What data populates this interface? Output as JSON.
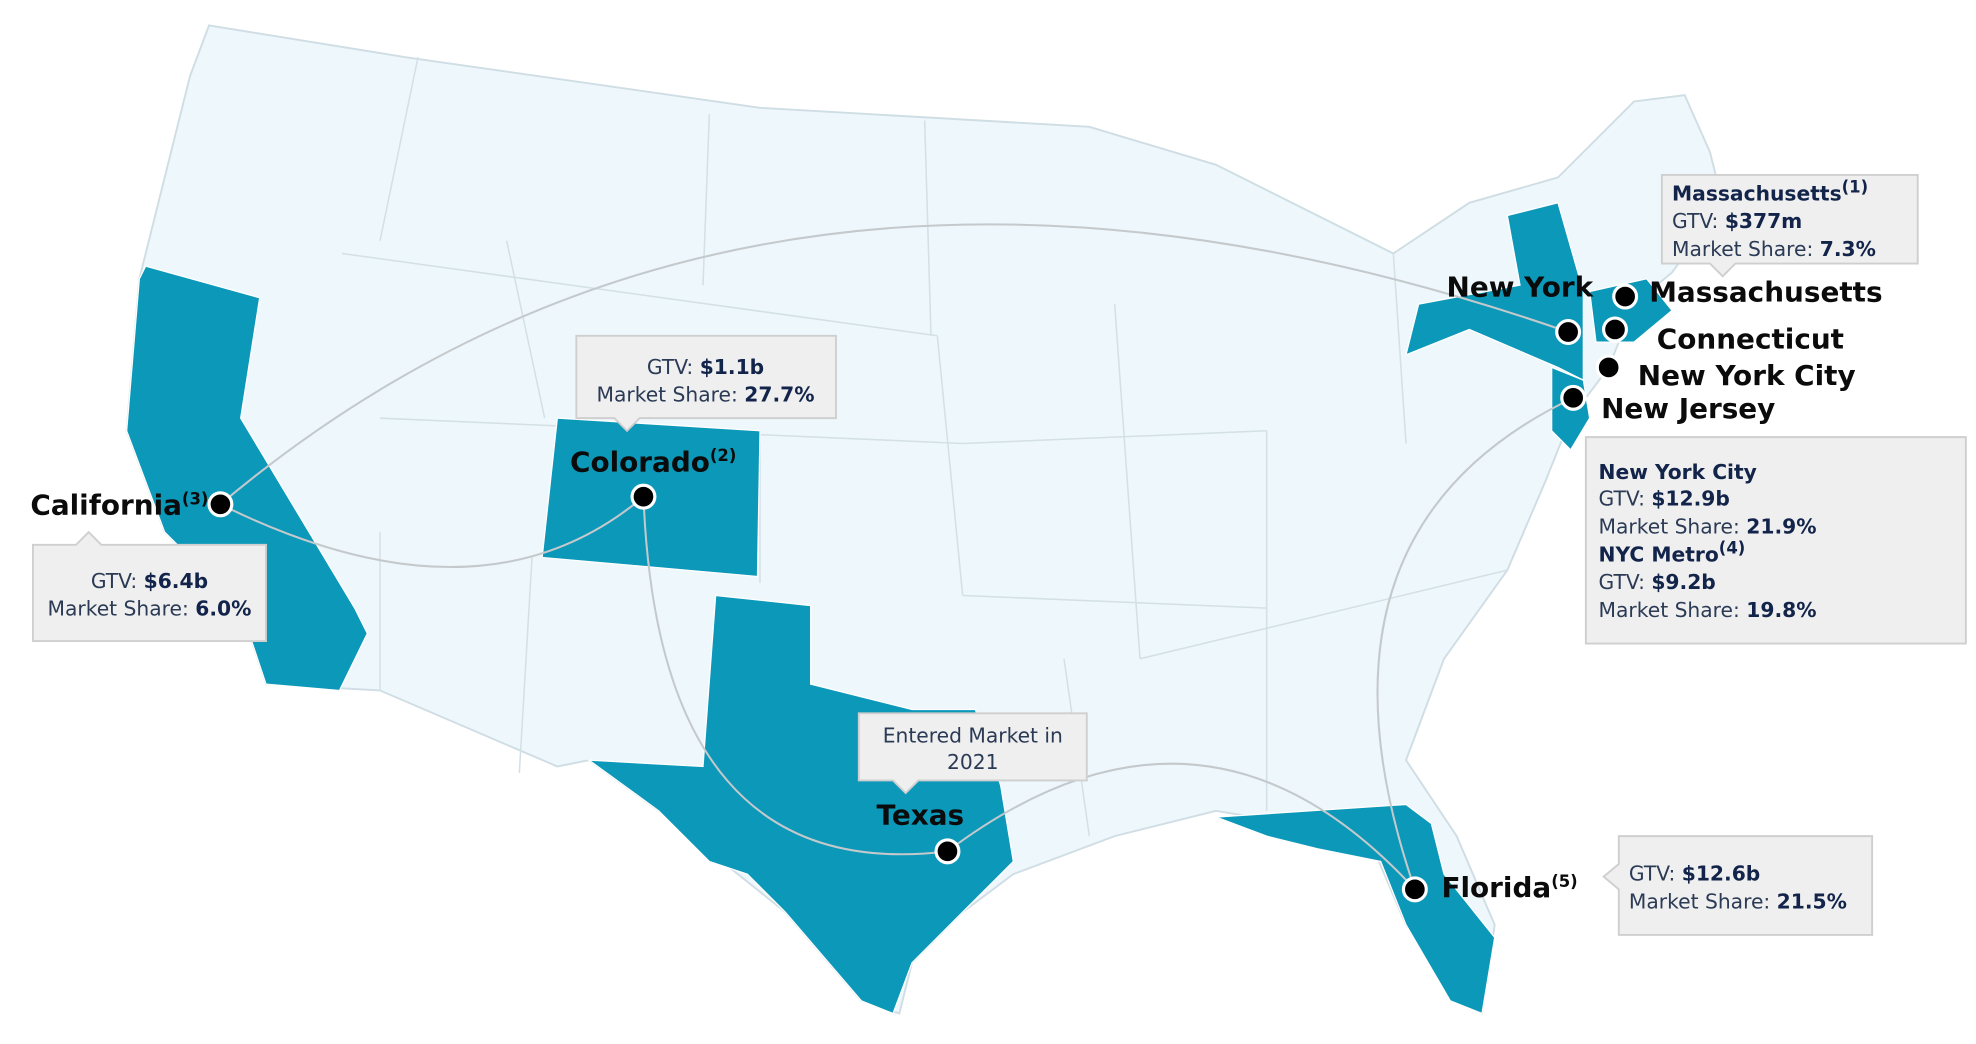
{
  "markets": [
    {
      "name": "California",
      "note": "(3)"
    },
    {
      "name": "Colorado",
      "note": "(2)"
    },
    {
      "name": "Texas"
    },
    {
      "name": "Florida",
      "note": "(5)"
    },
    {
      "name": "New York"
    },
    {
      "name": "Massachusetts"
    },
    {
      "name": "Connecticut"
    },
    {
      "name": "New York City"
    },
    {
      "name": "New Jersey"
    }
  ],
  "callouts": {
    "massachusetts": {
      "title": "Massachusetts",
      "note": "(1)",
      "gtv_label": "GTV:",
      "gtv": "$377m",
      "share_label": "Market Share:",
      "share": "7.3%"
    },
    "colorado": {
      "gtv_label": "GTV:",
      "gtv": "$1.1b",
      "share_label": "Market Share:",
      "share": "27.7%"
    },
    "california": {
      "gtv_label": "GTV:",
      "gtv": "$6.4b",
      "share_label": "Market Share:",
      "share": "6.0%"
    },
    "texas": {
      "lines": [
        "Entered Market in",
        "2021"
      ]
    },
    "new_york_city": {
      "title": "New York City",
      "gtv_label": "GTV:",
      "gtv": "$12.9b",
      "share_label": "Market Share:",
      "share": "21.9%",
      "metro_title": "NYC Metro",
      "metro_note": "(4)",
      "metro_gtv_label": "GTV:",
      "metro_gtv": "$9.2b",
      "metro_share_label": "Market Share:",
      "metro_share": "19.8%"
    },
    "florida": {
      "gtv_label": "GTV:",
      "gtv": "$12.6b",
      "share_label": "Market Share:",
      "share": "21.5%"
    }
  }
}
